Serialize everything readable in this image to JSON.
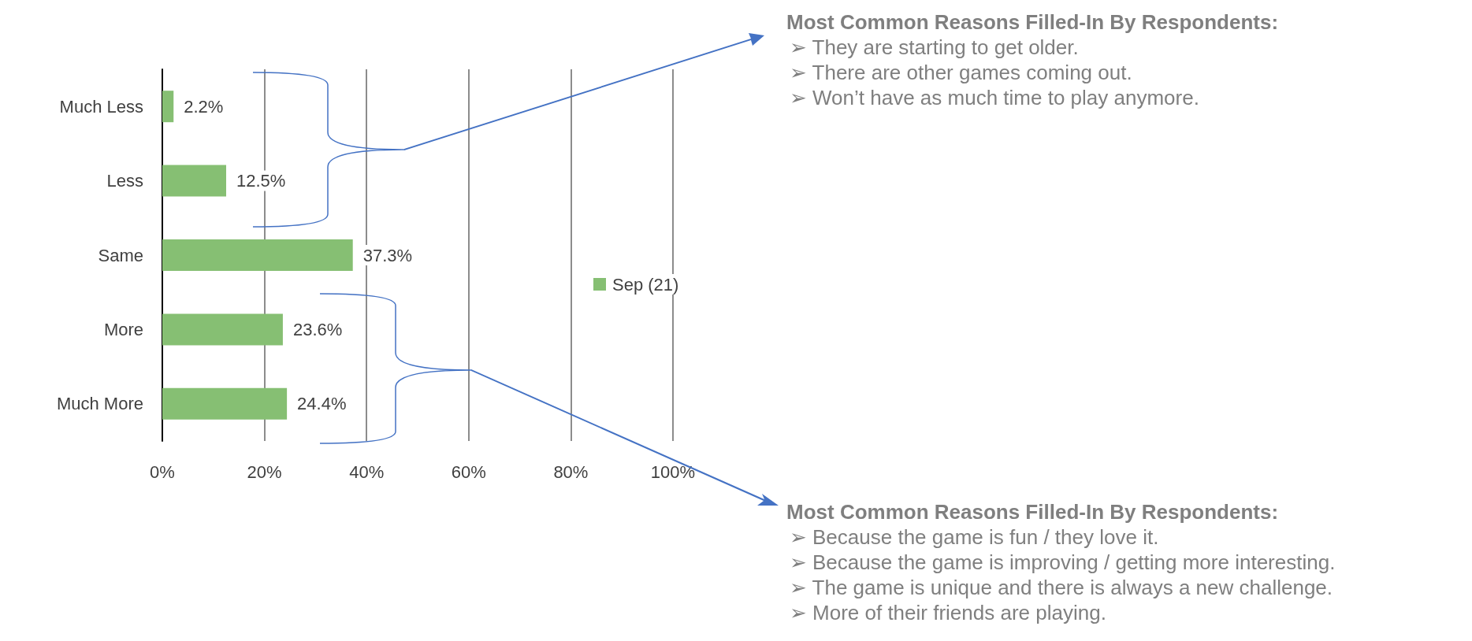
{
  "chart_data": {
    "type": "bar",
    "orientation": "horizontal",
    "categories": [
      "Much Less",
      "Less",
      "Same",
      "More",
      "Much More"
    ],
    "series": [
      {
        "name": "Sep (21)",
        "color": "#86bf73",
        "values": [
          2.2,
          12.5,
          37.3,
          23.6,
          24.4
        ],
        "value_labels": [
          "2.2%",
          "12.5%",
          "37.3%",
          "23.6%",
          "24.4%"
        ]
      }
    ],
    "xlim": [
      0,
      100
    ],
    "xticks": [
      {
        "value": 0,
        "label": "0%"
      },
      {
        "value": 20,
        "label": "20%"
      },
      {
        "value": 40,
        "label": "40%"
      },
      {
        "value": 60,
        "label": "60%"
      },
      {
        "value": 80,
        "label": "80%"
      },
      {
        "value": 100,
        "label": "100%"
      }
    ],
    "grid": "x",
    "legend": "right",
    "annotations": [
      "Most Common Reasons Filled-In By Respondents:\n➢ They are starting to get older.\n➢ There are other games coming out.\n➢ Won’t have as much time to play anymore.",
      "Most Common Reasons Filled-In By Respondents:\n➢ Because the game is fun / they love it.\n➢ Because the game is improving / getting more interesting.\n➢ The game is unique and there is always a new challenge.\n➢ More of their friends are playing."
    ]
  }
}
